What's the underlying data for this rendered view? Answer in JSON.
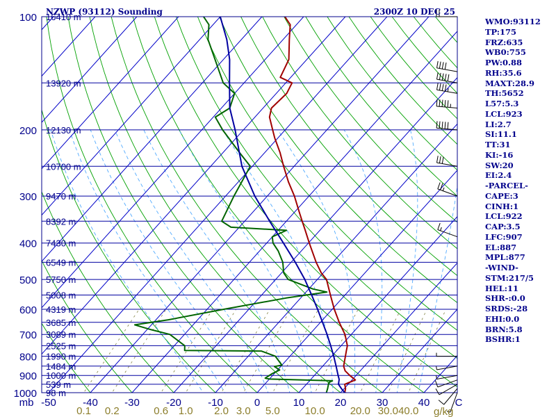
{
  "header": {
    "station": "NZWP (93112) Sounding",
    "time": "2300Z 10 DEC 25"
  },
  "indices": [
    "WMO:93112",
    "TP:175",
    "FRZ:635",
    "WB0:755",
    "PW:0.88",
    "RH:35.6",
    "MAXT:28.9",
    "TH:5652",
    "L57:5.3",
    "LCL:923",
    "LI:2.7",
    "SI:11.1",
    "TT:31",
    "KI:-16",
    "SW:20",
    "EI:2.4",
    "-PARCEL-",
    "CAPE:3",
    "CINH:1",
    "LCL:922",
    "CAP:3.5",
    "LFC:907",
    "EL:887",
    "MPL:877",
    "-WIND-",
    "STM:217/5",
    "HEL:11",
    "SHR-:0.0",
    "SRDS:-28",
    "EHI:0.0",
    "BRN:5.8",
    "BSHR:1"
  ],
  "colors": {
    "frame": "#00008b",
    "isobar": "#0000a0",
    "isotherm": "#0000c8",
    "dry_adiabat": "#00a000",
    "moist_adiabat": "#50aaff",
    "mixing_ratio": "#808040",
    "temperature": "#a00000",
    "dewpoint": "#006400",
    "parcel": "#0000a0",
    "label_height": "#00008b",
    "label_mixing": "#8b7d2a"
  },
  "chart_data": {
    "type": "line",
    "subtype": "skew-T log-p sounding",
    "y_scale": "log",
    "ylim": [
      1000,
      100
    ],
    "xlim": [
      -50,
      50
    ],
    "x_unit_label": "C",
    "y_unit_label": "mb",
    "pressure_ticks": [
      100,
      200,
      300,
      400,
      500,
      600,
      700,
      800,
      900,
      1000
    ],
    "temperature_ticks": [
      -50,
      -40,
      -30,
      -20,
      -10,
      0,
      10,
      20,
      30,
      40
    ],
    "height_levels": [
      {
        "p": 100,
        "label": "16410 m"
      },
      {
        "p": 150,
        "label": "13920 m"
      },
      {
        "p": 200,
        "label": "12130 m"
      },
      {
        "p": 250,
        "label": "10700 m"
      },
      {
        "p": 300,
        "label": "9470 m"
      },
      {
        "p": 350,
        "label": "8392 m"
      },
      {
        "p": 400,
        "label": "7430 m"
      },
      {
        "p": 450,
        "label": "6549 m"
      },
      {
        "p": 500,
        "label": "5750 m"
      },
      {
        "p": 550,
        "label": "5008 m"
      },
      {
        "p": 600,
        "label": "4319 m"
      },
      {
        "p": 650,
        "label": "3685 m"
      },
      {
        "p": 700,
        "label": "3089 m"
      },
      {
        "p": 750,
        "label": "2525 m"
      },
      {
        "p": 800,
        "label": "1990 m"
      },
      {
        "p": 850,
        "label": "1484 m"
      },
      {
        "p": 900,
        "label": "1000 m"
      },
      {
        "p": 950,
        "label": "539 m"
      },
      {
        "p": 1000,
        "label": "98 m"
      }
    ],
    "mixing_ratio_labels": [
      "0.1",
      "0.2",
      "0.6",
      "1.0",
      "2.0",
      "3.0",
      "5.0",
      "10.0",
      "20.0",
      "30.0",
      "40.0"
    ],
    "mixing_ratio_unit": "g/kg",
    "series": [
      {
        "key": "temperature",
        "points": [
          [
            1006,
            22.5
          ],
          [
            1000,
            21.0
          ],
          [
            975,
            20.3
          ],
          [
            950,
            19.2
          ],
          [
            925,
            20.8
          ],
          [
            900,
            18.5
          ],
          [
            875,
            16.4
          ],
          [
            850,
            15.0
          ],
          [
            800,
            13.3
          ],
          [
            775,
            12.4
          ],
          [
            750,
            11.5
          ],
          [
            700,
            8.5
          ],
          [
            650,
            4.5
          ],
          [
            600,
            0.5
          ],
          [
            550,
            -3.5
          ],
          [
            500,
            -7.8
          ],
          [
            480,
            -10.5
          ],
          [
            450,
            -14.0
          ],
          [
            400,
            -19.8
          ],
          [
            370,
            -23.5
          ],
          [
            350,
            -26.2
          ],
          [
            330,
            -29.0
          ],
          [
            300,
            -33.5
          ],
          [
            275,
            -38.0
          ],
          [
            250,
            -42.5
          ],
          [
            230,
            -46.3
          ],
          [
            210,
            -50.8
          ],
          [
            200,
            -53.0
          ],
          [
            185,
            -56.5
          ],
          [
            175,
            -58.0
          ],
          [
            160,
            -57.5
          ],
          [
            150,
            -58.5
          ],
          [
            145,
            -62.5
          ],
          [
            130,
            -64.3
          ],
          [
            115,
            -68.5
          ],
          [
            105,
            -71.5
          ],
          [
            100,
            -74.5
          ]
        ]
      },
      {
        "key": "dewpoint",
        "points": [
          [
            1006,
            16.5
          ],
          [
            1000,
            16.6
          ],
          [
            975,
            16.0
          ],
          [
            940,
            15.0
          ],
          [
            930,
            15.5
          ],
          [
            920,
            0.0
          ],
          [
            915,
            -1.2
          ],
          [
            890,
            -0.5
          ],
          [
            870,
            0.5
          ],
          [
            852,
            -1.5
          ],
          [
            845,
            0.0
          ],
          [
            800,
            -3.5
          ],
          [
            775,
            -8.0
          ],
          [
            772,
            -26.5
          ],
          [
            750,
            -27.5
          ],
          [
            700,
            -33.5
          ],
          [
            680,
            -39.0
          ],
          [
            660,
            -44.0
          ],
          [
            640,
            -37.0
          ],
          [
            600,
            -26.0
          ],
          [
            560,
            -13.5
          ],
          [
            540,
            -5.0
          ],
          [
            530,
            -9.0
          ],
          [
            500,
            -17.0
          ],
          [
            480,
            -19.5
          ],
          [
            450,
            -22.0
          ],
          [
            420,
            -25.5
          ],
          [
            400,
            -28.5
          ],
          [
            385,
            -30.0
          ],
          [
            370,
            -28.0
          ],
          [
            363,
            -42.0
          ],
          [
            350,
            -45.5
          ],
          [
            300,
            -48.0
          ],
          [
            250,
            -50.5
          ],
          [
            230,
            -56.0
          ],
          [
            200,
            -65.0
          ],
          [
            185,
            -69.5
          ],
          [
            175,
            -68.0
          ],
          [
            160,
            -70.0
          ],
          [
            150,
            -75.0
          ],
          [
            130,
            -82.0
          ],
          [
            115,
            -88.0
          ],
          [
            105,
            -91.0
          ],
          [
            100,
            -94.0
          ]
        ]
      },
      {
        "key": "parcel",
        "points": [
          [
            1000,
            21.0
          ],
          [
            975,
            19.3
          ],
          [
            950,
            17.7
          ],
          [
            922,
            16.8
          ],
          [
            900,
            15.7
          ],
          [
            850,
            13.2
          ],
          [
            800,
            10.5
          ],
          [
            750,
            7.5
          ],
          [
            700,
            4.2
          ],
          [
            650,
            0.5
          ],
          [
            600,
            -3.5
          ],
          [
            550,
            -8.0
          ],
          [
            500,
            -13.0
          ],
          [
            450,
            -19.0
          ],
          [
            400,
            -26.0
          ],
          [
            350,
            -34.0
          ],
          [
            300,
            -43.0
          ],
          [
            250,
            -52.5
          ],
          [
            200,
            -62.0
          ],
          [
            175,
            -68.0
          ],
          [
            150,
            -73.5
          ],
          [
            130,
            -78.5
          ],
          [
            115,
            -83.5
          ],
          [
            100,
            -90.0
          ]
        ]
      }
    ],
    "wind_barbs": [
      {
        "p": 1000,
        "dir": 200,
        "kt": 8
      },
      {
        "p": 975,
        "dir": 220,
        "kt": 10
      },
      {
        "p": 950,
        "dir": 240,
        "kt": 12
      },
      {
        "p": 925,
        "dir": 250,
        "kt": 10
      },
      {
        "p": 900,
        "dir": 260,
        "kt": 8
      },
      {
        "p": 850,
        "dir": 260,
        "kt": 5
      },
      {
        "p": 800,
        "dir": 270,
        "kt": 5
      },
      {
        "p": 385,
        "dir": 290,
        "kt": 15
      },
      {
        "p": 300,
        "dir": 290,
        "kt": 25
      },
      {
        "p": 250,
        "dir": 280,
        "kt": 30
      },
      {
        "p": 200,
        "dir": 275,
        "kt": 50
      },
      {
        "p": 175,
        "dir": 275,
        "kt": 55
      },
      {
        "p": 160,
        "dir": 280,
        "kt": 45
      },
      {
        "p": 150,
        "dir": 280,
        "kt": 50
      },
      {
        "p": 140,
        "dir": 280,
        "kt": 40
      },
      {
        "p": 100,
        "dir": 270,
        "kt": 20
      }
    ]
  }
}
